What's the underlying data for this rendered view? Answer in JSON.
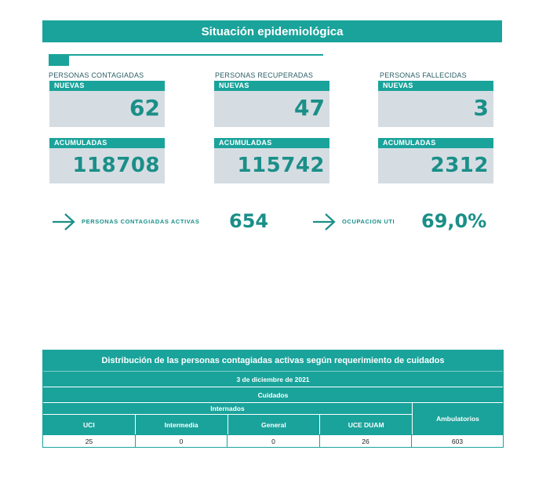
{
  "banner": {
    "title": "Situación epidemiológica"
  },
  "columns": [
    {
      "label": "PERSONAS CONTAGIADAS",
      "nuevas_label": "NUEVAS",
      "nuevas_value": "62",
      "acumuladas_label": "ACUMULADAS",
      "acumuladas_value": "118708"
    },
    {
      "label": "PERSONAS RECUPERADAS",
      "nuevas_label": "NUEVAS",
      "nuevas_value": "47",
      "acumuladas_label": "ACUMULADAS",
      "acumuladas_value": "115742"
    },
    {
      "label": "PERSONAS FALLECIDAS",
      "nuevas_label": "NUEVAS",
      "nuevas_value": "3",
      "acumuladas_label": "ACUMULADAS",
      "acumuladas_value": "2312"
    }
  ],
  "metrics": [
    {
      "label": "PERSONAS CONTAGIADAS ACTIVAS",
      "value": "654",
      "icon": "arrow-right-icon"
    },
    {
      "label": "OCUPACION UTI",
      "value": "69,0%",
      "icon": "arrow-right-icon"
    }
  ],
  "table": {
    "title": "Distribución de las personas contagiadas activas según requerimiento de cuidados",
    "date": "3 de diciembre de 2021",
    "cuidados_label": "Cuidados",
    "internados_label": "Internados",
    "headers": [
      "UCI",
      "Intermedia",
      "General",
      "UCE DUAM"
    ],
    "ambulatorios_label": "Ambulatorios",
    "values": [
      "25",
      "0",
      "0",
      "26",
      "603"
    ]
  },
  "colors": {
    "accent": "#1aa39b",
    "card_bg": "#d5dde3",
    "value_text": "#1a8f88"
  }
}
